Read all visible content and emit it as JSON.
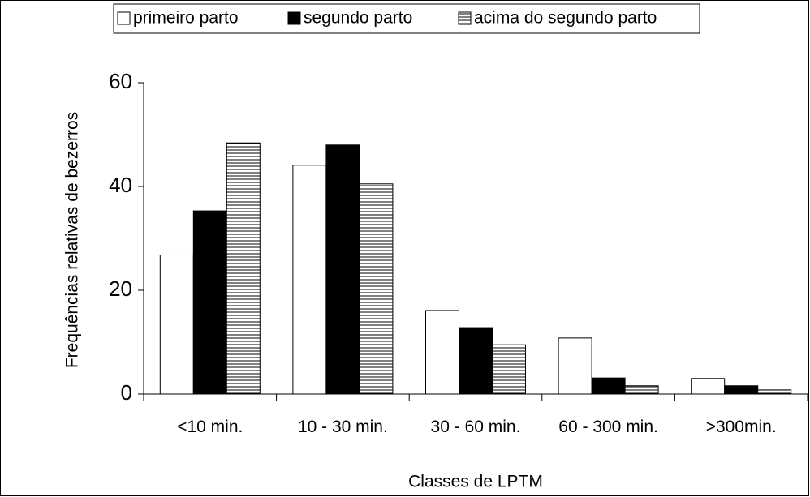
{
  "chart_data": {
    "type": "bar",
    "categories": [
      "<10 min.",
      "10 - 30 min.",
      "30 - 60 min.",
      "60 - 300 min.",
      ">300min."
    ],
    "series": [
      {
        "name": "primeiro parto",
        "color": "#ffffff",
        "values": [
          26.8,
          44.1,
          16.1,
          10.8,
          3.0
        ]
      },
      {
        "name": "segundo parto",
        "color": "#000000",
        "values": [
          35.3,
          48.0,
          12.8,
          3.1,
          1.6
        ]
      },
      {
        "name": "acima do segundo parto",
        "color": "#ffffff",
        "hatch": true,
        "values": [
          48.4,
          40.5,
          9.5,
          1.6,
          0.8
        ]
      }
    ],
    "ylim": [
      0,
      60
    ],
    "yticks": [
      0,
      20,
      40,
      60
    ],
    "ylabel": "Frequências relativas de bezerros",
    "xlabel": "Classes de LPTM",
    "legend": "top"
  }
}
